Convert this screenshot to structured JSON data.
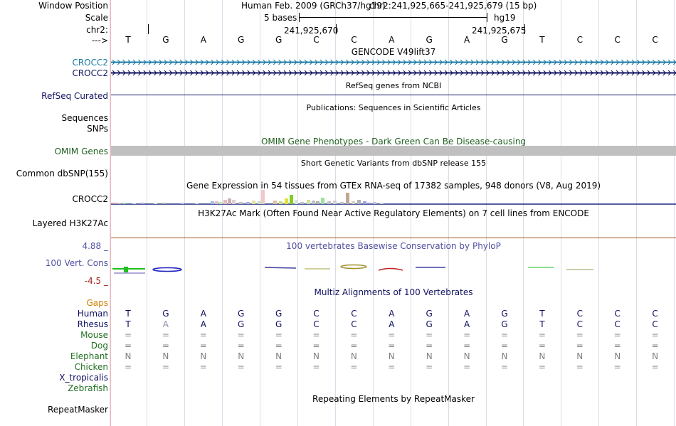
{
  "header": {
    "window_position_label": "Window Position",
    "scale_label": "Scale",
    "chrom_label": "chr2:",
    "strand_label": "--->",
    "assembly_text": "Human Feb. 2009 (GRCh37/hg19)",
    "position_text": "chr2:241,925,665-241,925,679 (15 bp)",
    "scale_text": "5 bases",
    "db_text": "hg19",
    "coord1": "241,925,670",
    "coord2": "241,925,675"
  },
  "bases": [
    "T",
    "G",
    "A",
    "G",
    "G",
    "C",
    "C",
    "A",
    "G",
    "A",
    "G",
    "T",
    "C",
    "C",
    "C"
  ],
  "tracks": {
    "gencode_title": "GENCODE V49lift37",
    "gencode_gene1": "CROCC2",
    "gencode_gene2": "CROCC2",
    "refseq_label": "RefSeq Curated",
    "refseq_title": "RefSeq genes from NCBI",
    "pubs_title": "Publications: Sequences in Scientific Articles",
    "sequences_label": "Sequences",
    "snps_label": "SNPs",
    "omim_title": "OMIM Gene Phenotypes - Dark Green Can Be Disease-causing",
    "omim_label": "OMIM Genes",
    "dbsnp_title": "Short Genetic Variants from dbSNP release 155",
    "dbsnp_label": "Common dbSNP(155)",
    "gtex_title": "Gene Expression in 54 tissues from GTEx RNA-seq of 17382 samples, 948 donors (V8, Aug 2019)",
    "gtex_label": "CROCC2",
    "h3k27_title": "H3K27Ac Mark (Often Found Near Active Regulatory Elements) on 7 cell lines from ENCODE",
    "h3k27_label": "Layered H3K27Ac",
    "cons_max": "4.88 _",
    "cons_title": "100 vertebrates Basewise Conservation by PhyloP",
    "cons_label": "100 Vert. Cons",
    "cons_min": "-4.5 _",
    "multiz_title": "Multiz Alignments of 100 Vertebrates",
    "gaps_label": "Gaps",
    "rmsk_title": "Repeating Elements by RepeatMasker",
    "rmsk_label": "RepeatMasker"
  },
  "species": [
    {
      "name": "Human",
      "row": [
        "T",
        "G",
        "A",
        "G",
        "G",
        "C",
        "C",
        "A",
        "G",
        "A",
        "G",
        "T",
        "C",
        "C",
        "C"
      ]
    },
    {
      "name": "Rhesus",
      "row": [
        "T",
        "A",
        "A",
        "G",
        "G",
        "C",
        "C",
        "A",
        "G",
        "A",
        "G",
        "T",
        "C",
        "C",
        "C"
      ]
    },
    {
      "name": "Mouse",
      "row": [
        "=",
        "=",
        "=",
        "=",
        "=",
        "=",
        "=",
        "=",
        "=",
        "=",
        "=",
        "=",
        "=",
        "=",
        "="
      ]
    },
    {
      "name": "Dog",
      "row": [
        "=",
        "=",
        "=",
        "=",
        "=",
        "=",
        "=",
        "=",
        "=",
        "=",
        "=",
        "=",
        "=",
        "=",
        "="
      ]
    },
    {
      "name": "Elephant",
      "row": [
        "N",
        "N",
        "N",
        "N",
        "N",
        "N",
        "N",
        "N",
        "N",
        "N",
        "N",
        "N",
        "N",
        "N",
        "N"
      ]
    },
    {
      "name": "Chicken",
      "row": [
        "=",
        "=",
        "=",
        "=",
        "=",
        "=",
        "=",
        "=",
        "=",
        "=",
        "=",
        "=",
        "=",
        "=",
        "="
      ]
    },
    {
      "name": "X_tropicalis",
      "row": []
    },
    {
      "name": "Zebrafish",
      "row": []
    }
  ],
  "colors": {
    "gencode": "#1a7aa5",
    "navy": "#101060",
    "omim": "#206020",
    "cons": "#5050a0",
    "cons_axis": "#a02020",
    "gaps": "#d08000",
    "species_green": "#207020"
  }
}
